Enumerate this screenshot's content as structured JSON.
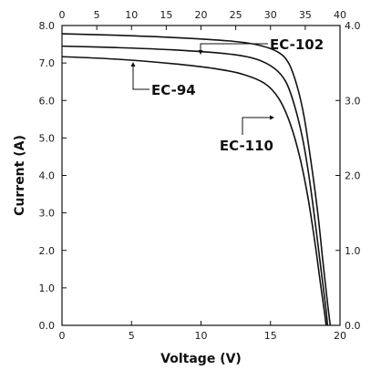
{
  "chart_data": {
    "type": "line",
    "xlabel": "Voltage (V)",
    "ylabel": "Current (A)",
    "x_bottom": {
      "range": [
        0,
        20
      ],
      "ticks": [
        0,
        5,
        10,
        15,
        20
      ],
      "tick_labels": [
        "0",
        "5",
        "10",
        "15",
        "20"
      ]
    },
    "x_top": {
      "range": [
        0,
        40
      ],
      "ticks": [
        0,
        5,
        10,
        15,
        20,
        25,
        30,
        35,
        40
      ],
      "tick_labels": [
        "0",
        "5",
        "10",
        "15",
        "20",
        "25",
        "30",
        "35",
        "40"
      ]
    },
    "y_left": {
      "range": [
        0,
        8
      ],
      "ticks": [
        0,
        1,
        2,
        3,
        4,
        5,
        6,
        7,
        8
      ],
      "tick_labels": [
        "0.0",
        "1.0",
        "2.0",
        "3.0",
        "4.0",
        "5.0",
        "6.0",
        "7.0",
        "8.0"
      ]
    },
    "y_right": {
      "range": [
        0,
        4
      ],
      "ticks": [
        0,
        1,
        2,
        3,
        4
      ],
      "tick_labels": [
        "0.0",
        "1.0",
        "2.0",
        "3.0",
        "4.0"
      ]
    },
    "grid": false,
    "series": [
      {
        "name": "EC-102",
        "points": [
          [
            0,
            7.78
          ],
          [
            4,
            7.74
          ],
          [
            8,
            7.68
          ],
          [
            12,
            7.59
          ],
          [
            14,
            7.49
          ],
          [
            15.5,
            7.3
          ],
          [
            16.3,
            7.0
          ],
          [
            16.9,
            6.4
          ],
          [
            17.4,
            5.6
          ],
          [
            17.9,
            4.4
          ],
          [
            18.4,
            3.0
          ],
          [
            18.8,
            1.6
          ],
          [
            19.1,
            0.6
          ],
          [
            19.3,
            0.0
          ]
        ]
      },
      {
        "name": "EC-110",
        "points": [
          [
            0,
            7.45
          ],
          [
            4,
            7.41
          ],
          [
            8,
            7.35
          ],
          [
            12,
            7.24
          ],
          [
            14,
            7.1
          ],
          [
            15.3,
            6.85
          ],
          [
            16.1,
            6.5
          ],
          [
            16.7,
            5.9
          ],
          [
            17.3,
            5.0
          ],
          [
            17.8,
            3.9
          ],
          [
            18.3,
            2.5
          ],
          [
            18.7,
            1.3
          ],
          [
            19.0,
            0.4
          ],
          [
            19.1,
            0.0
          ]
        ]
      },
      {
        "name": "EC-94",
        "points": [
          [
            0,
            7.17
          ],
          [
            4,
            7.1
          ],
          [
            8,
            6.98
          ],
          [
            11,
            6.85
          ],
          [
            13,
            6.7
          ],
          [
            14.6,
            6.45
          ],
          [
            15.6,
            6.05
          ],
          [
            16.4,
            5.4
          ],
          [
            17.1,
            4.5
          ],
          [
            17.7,
            3.4
          ],
          [
            18.2,
            2.2
          ],
          [
            18.6,
            1.1
          ],
          [
            18.9,
            0.3
          ],
          [
            19.0,
            0.0
          ]
        ]
      }
    ],
    "annotations": [
      {
        "text": "EC-102",
        "series": "EC-102"
      },
      {
        "text": "EC-110",
        "series": "EC-110"
      },
      {
        "text": "EC-94",
        "series": "EC-94"
      }
    ]
  }
}
